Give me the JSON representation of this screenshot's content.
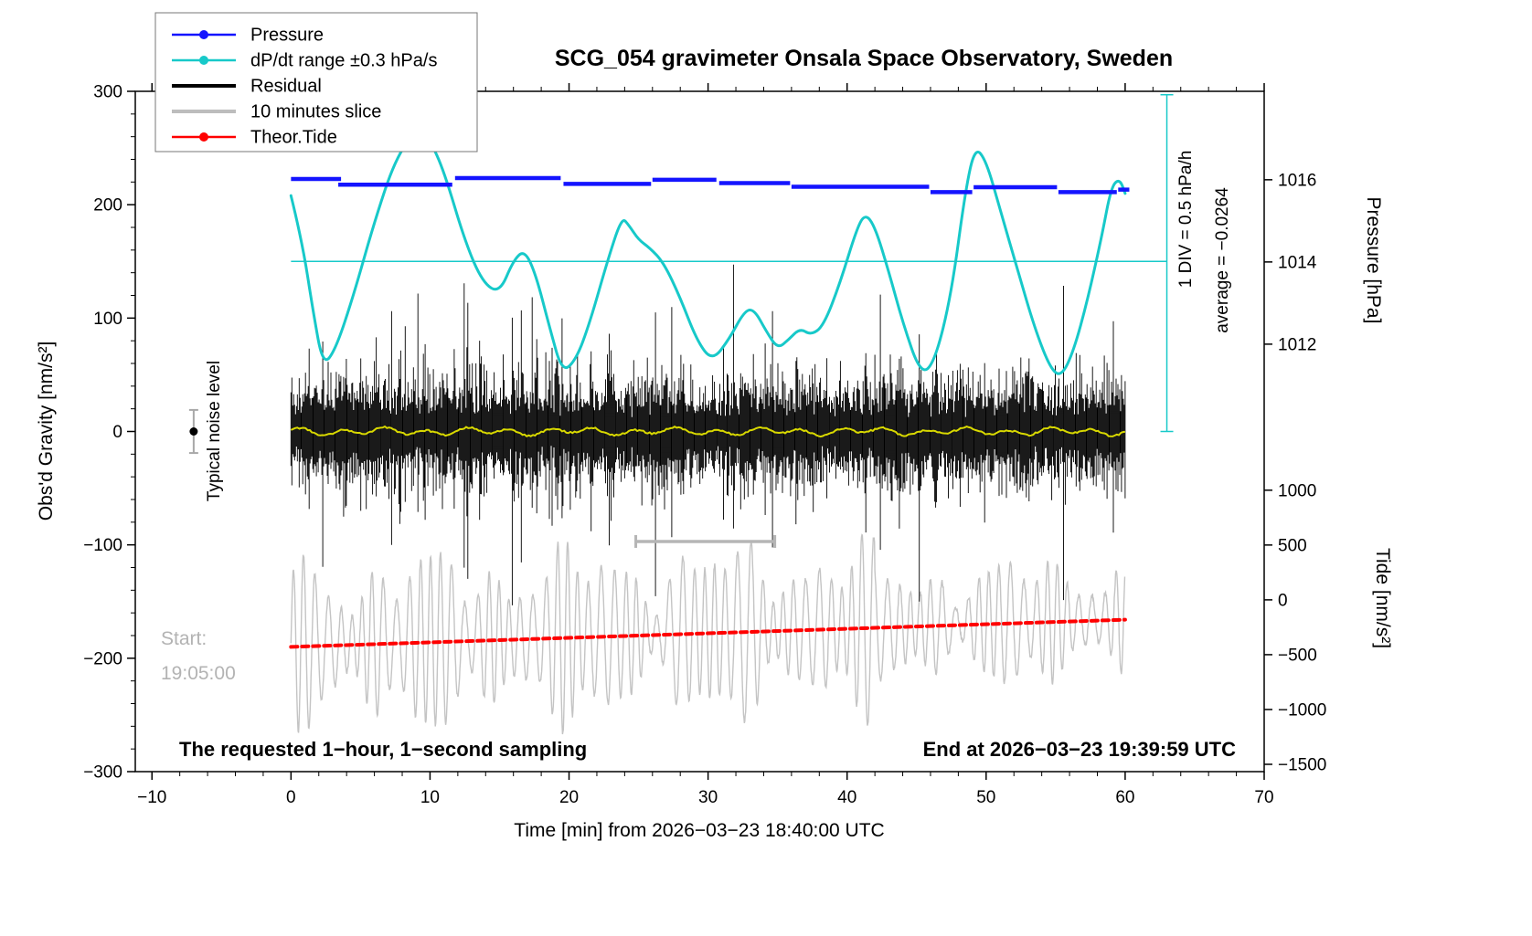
{
  "chart_data": {
    "type": "line",
    "title": "SCG_054 gravimeter Onsala Space Observatory, Sweden",
    "xlabel": "Time [min] from 2026−03−23 18:40:00 UTC",
    "ylabel": "Obs'd Gravity [nm/s²]",
    "y2label": "Pressure [hPa]",
    "y3label": "Tide [nm/s²]",
    "xlim": [
      -11.2,
      70
    ],
    "ylim": [
      -300,
      300
    ],
    "xticks": {
      "values": [
        -10,
        0,
        10,
        20,
        30,
        40,
        50,
        60,
        70
      ],
      "labels": [
        "−10",
        "0",
        "10",
        "20",
        "30",
        "40",
        "50",
        "60",
        "70"
      ],
      "minor_step": 2
    },
    "yticks": {
      "values": [
        -300,
        -200,
        -100,
        0,
        100,
        200,
        300
      ],
      "labels": [
        "−300",
        "−200",
        "−100",
        "0",
        "100",
        "200",
        "300"
      ],
      "minor_step": 20
    },
    "pressure_axis": {
      "ticks": [
        1016,
        1014,
        1012
      ],
      "labels": [
        "1016",
        "1014",
        "1012"
      ],
      "ref_p": 1012,
      "ref_g": 77,
      "slope": 36.25
    },
    "tide_axis": {
      "ticks": [
        1000,
        500,
        0,
        -500,
        -1000,
        -1500
      ],
      "labels": [
        "1000",
        "500",
        "0",
        "−500",
        "−1000",
        "−1500"
      ],
      "ref_t": 0,
      "ref_g": -148.5,
      "slope": 0.0967
    },
    "legend": [
      {
        "label": "Pressure",
        "color": "#1414ff",
        "style": "line-dot"
      },
      {
        "label": "dP/dt range ±0.3 hPa/s",
        "color": "#17c9c9",
        "style": "line-dot"
      },
      {
        "label": "Residual",
        "color": "#000000",
        "style": "line"
      },
      {
        "label": "10 minutes slice",
        "color": "#bdbdbd",
        "style": "line"
      },
      {
        "label": "Theor.Tide",
        "color": "#ff0000",
        "style": "line-dot"
      }
    ],
    "series": {
      "pressure_segments": [
        [
          0,
          3.6,
          1016.02
        ],
        [
          3.4,
          11.6,
          1015.88
        ],
        [
          11.8,
          19.4,
          1016.04
        ],
        [
          19.6,
          25.9,
          1015.9
        ],
        [
          26.0,
          30.6,
          1016.0
        ],
        [
          30.8,
          35.9,
          1015.92
        ],
        [
          36.0,
          45.9,
          1015.83
        ],
        [
          46.0,
          49.0,
          1015.7
        ],
        [
          49.1,
          55.1,
          1015.82
        ],
        [
          55.2,
          59.4,
          1015.7
        ],
        [
          59.5,
          60.3,
          1015.76
        ]
      ],
      "dpdt_curve": [
        [
          0,
          208
        ],
        [
          0.8,
          168
        ],
        [
          1.6,
          105
        ],
        [
          2.3,
          58
        ],
        [
          3.2,
          72
        ],
        [
          4.5,
          120
        ],
        [
          6,
          185
        ],
        [
          7.5,
          240
        ],
        [
          9,
          266
        ],
        [
          10,
          257
        ],
        [
          11,
          230
        ],
        [
          12.5,
          168
        ],
        [
          13.8,
          131
        ],
        [
          15,
          122
        ],
        [
          16,
          151
        ],
        [
          16.8,
          160
        ],
        [
          17.6,
          139
        ],
        [
          18.6,
          92
        ],
        [
          19.5,
          52
        ],
        [
          20.5,
          63
        ],
        [
          21.5,
          96
        ],
        [
          22.8,
          152
        ],
        [
          23.8,
          189
        ],
        [
          24.3,
          182
        ],
        [
          25,
          169
        ],
        [
          25.8,
          162
        ],
        [
          26.8,
          149
        ],
        [
          28,
          118
        ],
        [
          29.2,
          80
        ],
        [
          30.3,
          62
        ],
        [
          31.5,
          81
        ],
        [
          32.6,
          106
        ],
        [
          33.3,
          108
        ],
        [
          34.2,
          88
        ],
        [
          35,
          73
        ],
        [
          35.8,
          81
        ],
        [
          36.6,
          91
        ],
        [
          37.4,
          85
        ],
        [
          38.3,
          93
        ],
        [
          39.5,
          131
        ],
        [
          40.7,
          179
        ],
        [
          41.3,
          192
        ],
        [
          42,
          181
        ],
        [
          43,
          141
        ],
        [
          44,
          96
        ],
        [
          45.3,
          50
        ],
        [
          46.3,
          61
        ],
        [
          47.5,
          121
        ],
        [
          48.5,
          212
        ],
        [
          49.2,
          251
        ],
        [
          50,
          239
        ],
        [
          51,
          196
        ],
        [
          52.3,
          141
        ],
        [
          53.5,
          91
        ],
        [
          54.6,
          56
        ],
        [
          55.4,
          48
        ],
        [
          56.3,
          71
        ],
        [
          57.3,
          116
        ],
        [
          58.3,
          171
        ],
        [
          59,
          216
        ],
        [
          59.6,
          223
        ],
        [
          60,
          210
        ]
      ],
      "dpdt_ref_line": {
        "y": 150,
        "x1": 0,
        "x2": 63
      },
      "dpdt_scale_bar": {
        "x": 63,
        "y1": 0,
        "y2": 297
      },
      "residual": {
        "x_start": 0,
        "x_end": 60,
        "seed": 1337,
        "base_amp": 20,
        "amp_jitter": 24,
        "spike_prob": 0.018,
        "spike_amp": 60,
        "max_amp": 138
      },
      "smoothed_residual": {
        "color": "#d9d900",
        "amp": 3
      },
      "slice": {
        "x_start": 0,
        "x_end": 60,
        "center": -188,
        "drift_per_min": 0.38,
        "carrier_period_min": 0.82,
        "seed": 2024,
        "base_env": 52,
        "env_mod": 30
      },
      "slice_bar": {
        "y": -97,
        "x1": 24.8,
        "x2": 34.8
      },
      "tide_line": {
        "x1": 0,
        "y1": -190,
        "x2": 60,
        "y2": -166
      },
      "noise_marker": {
        "x": -7,
        "y": 0,
        "err": 19
      }
    },
    "annotations": {
      "div_scale": "1 DIV = 0.5 hPa/h",
      "average": "average = −0.0264",
      "noise_label": "Typical noise level",
      "start_label": "Start:",
      "start_time": "19:05:00",
      "footer_left": "The requested 1−hour, 1−second sampling",
      "footer_right": "End at 2026−03−23 19:39:59 UTC"
    }
  }
}
